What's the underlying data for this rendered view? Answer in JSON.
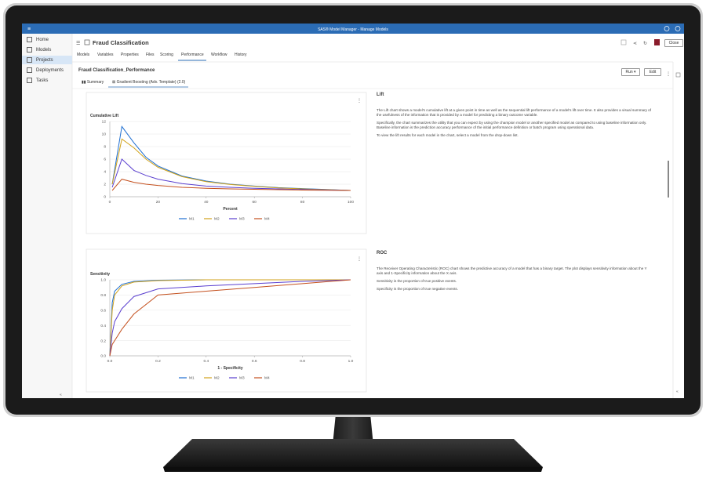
{
  "app": {
    "title": "SAS® Model Manager - Manage Models"
  },
  "nav": {
    "items": [
      "Home",
      "Models",
      "Projects",
      "Deployments",
      "Tasks"
    ]
  },
  "project": {
    "title": "Fraud Classification",
    "close": "Close",
    "tabs": [
      "Models",
      "Variables",
      "Properties",
      "Files",
      "Scoring",
      "Performance",
      "Workflow",
      "History"
    ]
  },
  "performance": {
    "title": "Fraud Classification_Performance",
    "run": "Run",
    "edit": "Edit",
    "subtabs": [
      "Summary",
      "Gradient Boosting (Adv. Template) (2.0)"
    ]
  },
  "lift": {
    "heading": "Lift",
    "paragraphs": [
      "The Lift chart shows a model's cumulative lift at a given point in time as well as the sequential lift performance of a model's lift over time. It also provides a visual summary of the usefulness of the information that is provided by a model for predicting a binary outcome variable.",
      "Specifically, the chart summarizes the utility that you can expect by using the champion model or another specified model as compared to using baseline information only. Baseline information is the prediction accuracy performance of the initial performance definition or batch program using operational data.",
      "To view the lift results for each model in the chart, select a model from the drop-down list."
    ],
    "chart": {
      "type": "line",
      "y_label": "Cumulative Lift",
      "x_label": "Percent",
      "x": [
        1,
        5,
        10,
        15,
        20,
        30,
        40,
        50,
        60,
        70,
        80,
        90,
        100
      ],
      "series": [
        {
          "name": "M1",
          "color": "#1f6fd1",
          "values": [
            2,
            11.2,
            8.6,
            6.3,
            4.9,
            3.3,
            2.5,
            2.0,
            1.7,
            1.45,
            1.3,
            1.15,
            1.0
          ]
        },
        {
          "name": "M2",
          "color": "#d1a21a",
          "values": [
            2,
            9.2,
            7.8,
            6.0,
            4.7,
            3.2,
            2.4,
            1.95,
            1.65,
            1.4,
            1.25,
            1.12,
            1.0
          ]
        },
        {
          "name": "M3",
          "color": "#5a3fcf",
          "values": [
            1.5,
            6.0,
            4.2,
            3.4,
            2.8,
            2.1,
            1.7,
            1.5,
            1.35,
            1.25,
            1.15,
            1.08,
            1.0
          ]
        },
        {
          "name": "M4",
          "color": "#c4501e",
          "values": [
            1,
            2.8,
            2.3,
            2.0,
            1.8,
            1.5,
            1.35,
            1.25,
            1.18,
            1.12,
            1.07,
            1.03,
            1.0
          ]
        }
      ],
      "xlim": [
        0,
        100
      ],
      "ylim": [
        0,
        12
      ],
      "xticks": [
        0,
        20,
        40,
        60,
        80,
        100
      ],
      "yticks": [
        0,
        2,
        4,
        6,
        8,
        10,
        12
      ],
      "grid": true
    }
  },
  "roc": {
    "heading": "ROC",
    "paragraphs": [
      "The Receiver Operating Characteristic (ROC) chart shows the predictive accuracy of a model that has a binary target. The plot displays sensitivity information about the Y axis and 1-Specificity information about the X axis.",
      "Sensitivity is the proportion of true positive events.",
      "Specificity is the proportion of true negative events."
    ],
    "chart": {
      "type": "line",
      "y_label": "Sensitivity",
      "x_label": "1 - Specificity",
      "x": [
        0,
        0.01,
        0.02,
        0.05,
        0.1,
        0.2,
        0.4,
        0.6,
        0.8,
        1
      ],
      "series": [
        {
          "name": "M1",
          "color": "#1f6fd1",
          "values": [
            0,
            0.7,
            0.85,
            0.94,
            0.98,
            0.995,
            1,
            1,
            1,
            1
          ]
        },
        {
          "name": "M2",
          "color": "#d1a21a",
          "values": [
            0,
            0.6,
            0.8,
            0.92,
            0.97,
            0.99,
            1,
            1,
            1,
            1
          ]
        },
        {
          "name": "M3",
          "color": "#5a3fcf",
          "values": [
            0,
            0.3,
            0.45,
            0.62,
            0.78,
            0.88,
            0.92,
            0.95,
            0.98,
            1
          ]
        },
        {
          "name": "M4",
          "color": "#c4501e",
          "values": [
            0,
            0.15,
            0.2,
            0.35,
            0.55,
            0.8,
            0.85,
            0.9,
            0.95,
            1
          ]
        }
      ],
      "xlim": [
        0,
        1
      ],
      "ylim": [
        0,
        1
      ],
      "xticks": [
        {
          "value": 0,
          "label": "0.0"
        },
        0.2,
        0.4,
        0.6,
        0.8,
        {
          "value": 1,
          "label": "1.0"
        }
      ],
      "yticks": [
        {
          "value": 0,
          "label": "0.0"
        },
        0.2,
        0.4,
        0.6,
        0.8,
        {
          "value": 1,
          "label": "1.0"
        }
      ],
      "grid": true
    }
  }
}
